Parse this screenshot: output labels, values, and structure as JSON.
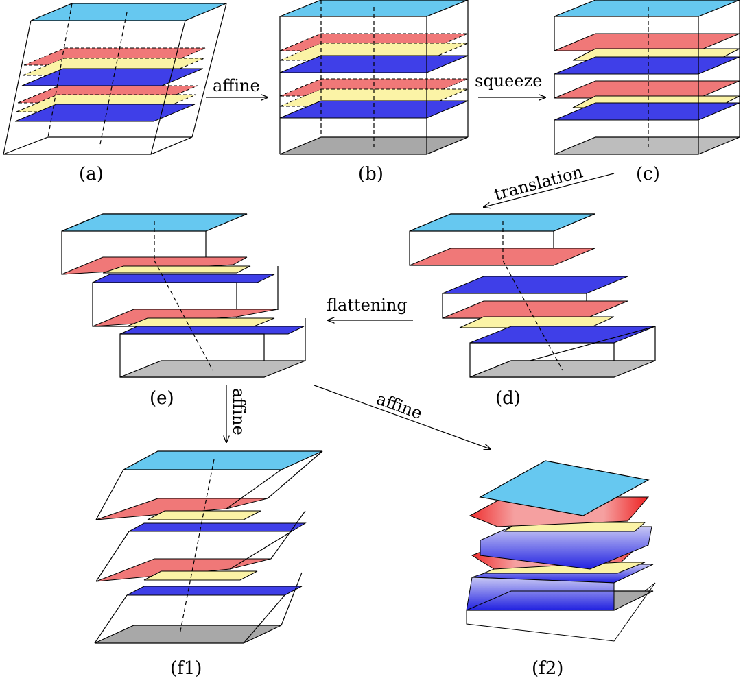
{
  "colors": {
    "top": "#66c8f0",
    "bottom": "#a8a8a8",
    "red": "#f07878",
    "yellow": "#fbf3a6",
    "blue": "#3f3fe8"
  },
  "panels": {
    "a": "(a)",
    "b": "(b)",
    "c": "(c)",
    "d": "(d)",
    "e": "(e)",
    "f1": "(f1)",
    "f2": "(f2)"
  },
  "operations": {
    "a_to_b": "affine",
    "b_to_c": "squeeze",
    "c_to_d": "translation",
    "d_to_e": "flattening",
    "e_to_f1": "affine",
    "e_to_f2": "affine"
  }
}
